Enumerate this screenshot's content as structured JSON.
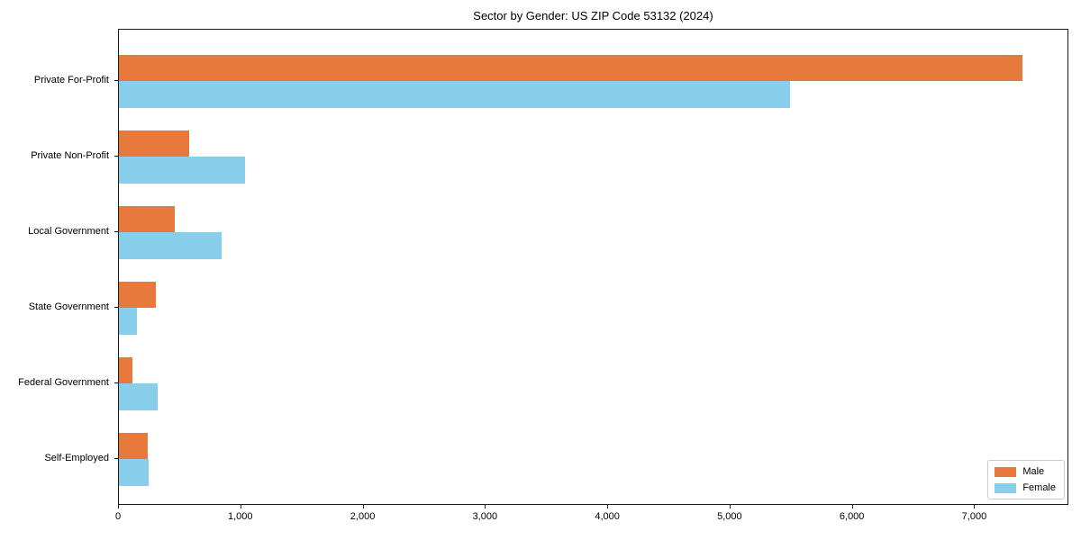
{
  "chart_data": {
    "type": "bar",
    "orientation": "horizontal",
    "title": "Sector by Gender: US ZIP Code 53132 (2024)",
    "categories": [
      "Private For-Profit",
      "Private Non-Profit",
      "Local Government",
      "State Government",
      "Federal Government",
      "Self-Employed"
    ],
    "series": [
      {
        "name": "Male",
        "color": "#e8793d",
        "values": [
          7400,
          575,
          460,
          300,
          110,
          235
        ]
      },
      {
        "name": "Female",
        "color": "#87ceeb",
        "values": [
          5500,
          1030,
          840,
          150,
          315,
          245
        ]
      }
    ],
    "xlim": [
      0,
      7770
    ],
    "x_ticks": [
      0,
      1000,
      2000,
      3000,
      4000,
      5000,
      6000,
      7000
    ],
    "x_tick_labels": [
      "0",
      "1,000",
      "2,000",
      "3,000",
      "4,000",
      "5,000",
      "6,000",
      "7,000"
    ],
    "xlabel": "",
    "ylabel": "",
    "grid": false,
    "legend_position": "lower right"
  }
}
